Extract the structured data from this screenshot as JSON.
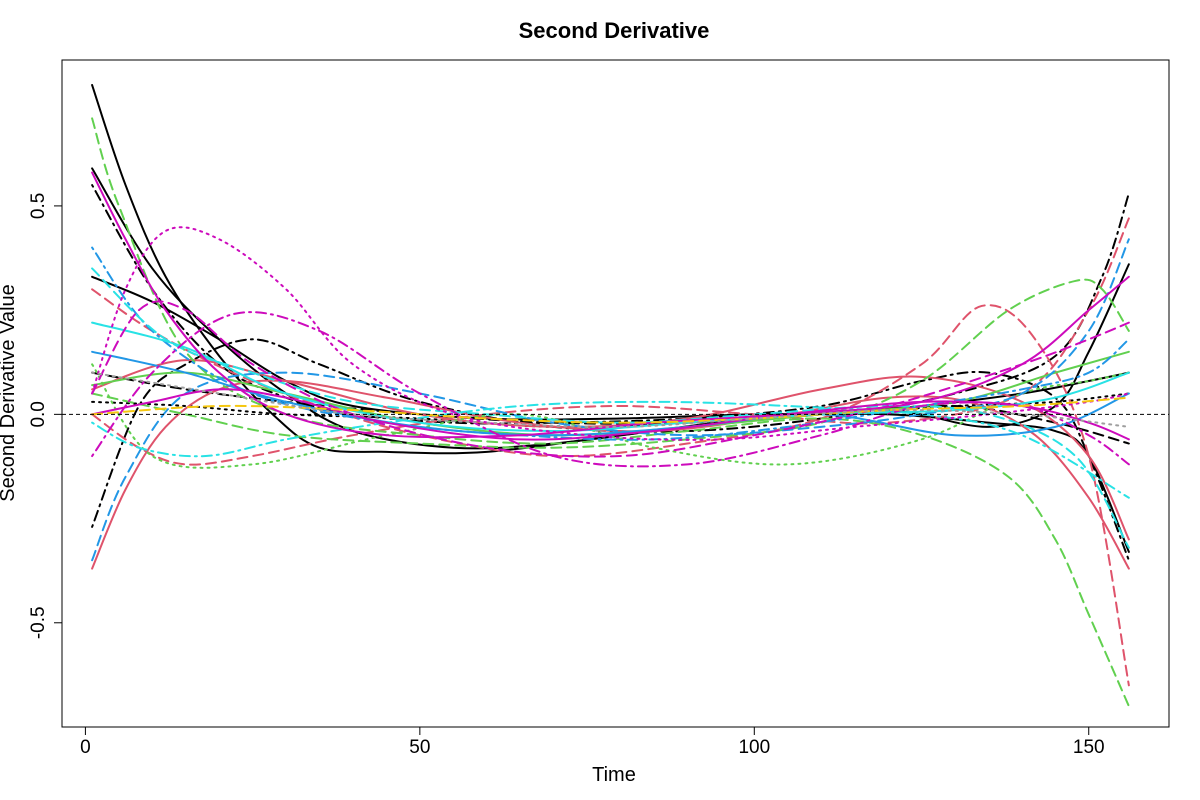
{
  "chart_data": {
    "type": "line",
    "title": "Second Derivative",
    "xlabel": "Time",
    "ylabel": "Second Derivative Value",
    "xlim": [
      -3.5,
      162
    ],
    "ylim": [
      -0.75,
      0.85
    ],
    "x_ticks": [
      0,
      50,
      100,
      150
    ],
    "y_ticks": [
      -0.5,
      0.0,
      0.5
    ],
    "x_tick_labels": [
      "0",
      "50",
      "100",
      "150"
    ],
    "y_tick_labels": [
      "-0.5",
      "0.0",
      "0.5"
    ],
    "reference_line": {
      "y": 0,
      "style": "dashed",
      "color": "#000000"
    },
    "grid": false,
    "legend": "none",
    "palette": [
      "#000000",
      "#DF536B",
      "#61D04F",
      "#2297E6",
      "#28E2E5",
      "#CD0BBC",
      "#F5C710",
      "#9E9E9E"
    ],
    "series": [
      {
        "color": "#000000",
        "dash": "solid",
        "x": [
          1,
          6,
          12,
          20,
          28,
          35,
          45,
          60,
          80,
          100,
          120,
          135,
          145,
          150,
          156
        ],
        "y": [
          0.79,
          0.55,
          0.33,
          0.14,
          0.0,
          -0.08,
          -0.09,
          -0.09,
          -0.05,
          -0.01,
          0.01,
          -0.03,
          0.02,
          0.15,
          0.36
        ]
      },
      {
        "color": "#000000",
        "dash": "solid",
        "x": [
          1,
          10,
          20,
          30,
          40,
          60,
          80,
          100,
          120,
          135,
          145,
          150,
          156
        ],
        "y": [
          0.33,
          0.27,
          0.18,
          0.08,
          0.02,
          -0.01,
          -0.01,
          0.0,
          0.0,
          -0.02,
          -0.04,
          -0.1,
          -0.33
        ]
      },
      {
        "color": "#000000",
        "dash": "solid",
        "x": [
          1,
          10,
          20,
          30,
          40,
          55,
          70,
          90,
          110,
          125,
          140,
          150,
          156
        ],
        "y": [
          0.59,
          0.35,
          0.18,
          0.05,
          -0.04,
          -0.08,
          -0.07,
          -0.03,
          0.0,
          0.02,
          0.05,
          0.08,
          0.1
        ]
      },
      {
        "color": "#000000",
        "dash": "dotdash",
        "x": [
          1,
          8,
          15,
          25,
          35,
          50,
          70,
          90,
          110,
          130,
          145,
          152,
          156
        ],
        "y": [
          -0.27,
          0.02,
          0.12,
          0.18,
          0.12,
          0.03,
          -0.03,
          -0.04,
          -0.01,
          0.05,
          0.14,
          0.33,
          0.53
        ]
      },
      {
        "color": "#000000",
        "dash": "dotdash",
        "x": [
          1,
          10,
          20,
          30,
          40,
          55,
          70,
          90,
          110,
          125,
          135,
          145,
          150,
          156
        ],
        "y": [
          0.55,
          0.3,
          0.12,
          0.04,
          0.0,
          -0.02,
          -0.02,
          -0.01,
          0.02,
          0.08,
          0.1,
          0.04,
          -0.1,
          -0.35
        ]
      },
      {
        "color": "#000000",
        "dash": "dashed",
        "x": [
          1,
          15,
          30,
          50,
          70,
          90,
          110,
          130,
          145,
          156
        ],
        "y": [
          0.1,
          0.06,
          0.03,
          0.0,
          -0.02,
          -0.02,
          0.0,
          0.02,
          -0.02,
          -0.07
        ]
      },
      {
        "color": "#000000",
        "dash": "dotted",
        "x": [
          1,
          15,
          30,
          50,
          70,
          90,
          110,
          130,
          145,
          156
        ],
        "y": [
          0.03,
          0.02,
          0.0,
          -0.01,
          -0.03,
          -0.02,
          0.0,
          0.02,
          0.03,
          0.05
        ]
      },
      {
        "color": "#DF536B",
        "dash": "solid",
        "x": [
          1,
          6,
          12,
          20,
          30,
          45,
          65,
          85,
          105,
          120,
          132,
          142,
          150,
          156
        ],
        "y": [
          -0.37,
          -0.18,
          -0.03,
          0.06,
          0.08,
          0.04,
          -0.02,
          -0.04,
          0.0,
          0.04,
          0.03,
          -0.05,
          -0.2,
          -0.37
        ]
      },
      {
        "color": "#DF536B",
        "dash": "dashed",
        "x": [
          1,
          10,
          22,
          35,
          50,
          70,
          90,
          110,
          125,
          134,
          142,
          150,
          156
        ],
        "y": [
          0.3,
          0.2,
          0.1,
          0.02,
          -0.05,
          -0.1,
          -0.07,
          -0.01,
          0.12,
          0.26,
          0.18,
          -0.1,
          -0.65
        ]
      },
      {
        "color": "#DF536B",
        "dash": "dashed",
        "x": [
          1,
          8,
          15,
          25,
          40,
          60,
          80,
          100,
          120,
          140,
          150,
          156
        ],
        "y": [
          0.0,
          -0.08,
          -0.12,
          -0.1,
          -0.05,
          0.0,
          0.02,
          0.0,
          -0.02,
          0.05,
          0.25,
          0.47
        ]
      },
      {
        "color": "#DF536B",
        "dash": "solid",
        "x": [
          1,
          15,
          30,
          50,
          70,
          90,
          110,
          125,
          140,
          150,
          156
        ],
        "y": [
          0.06,
          0.13,
          0.08,
          0.0,
          -0.03,
          -0.01,
          0.06,
          0.09,
          0.03,
          -0.1,
          -0.3
        ]
      },
      {
        "color": "#61D04F",
        "dash": "dashed",
        "x": [
          1,
          5,
          15,
          30,
          50,
          70,
          90,
          110,
          125,
          138,
          145,
          150,
          156
        ],
        "y": [
          0.71,
          0.5,
          0.15,
          0.0,
          -0.05,
          -0.07,
          -0.04,
          -0.01,
          -0.05,
          -0.15,
          -0.3,
          -0.48,
          -0.7
        ]
      },
      {
        "color": "#61D04F",
        "dash": "dashed",
        "x": [
          1,
          15,
          30,
          50,
          70,
          90,
          110,
          125,
          138,
          148,
          152,
          156
        ],
        "y": [
          0.05,
          0.0,
          -0.05,
          -0.07,
          -0.08,
          -0.06,
          -0.02,
          0.08,
          0.25,
          0.32,
          0.3,
          0.2
        ]
      },
      {
        "color": "#61D04F",
        "dash": "dotted",
        "x": [
          1,
          10,
          25,
          45,
          65,
          85,
          105,
          125,
          140,
          150,
          156
        ],
        "y": [
          0.12,
          -0.1,
          -0.12,
          -0.05,
          0.0,
          -0.08,
          -0.12,
          -0.06,
          0.05,
          0.08,
          0.1
        ]
      },
      {
        "color": "#61D04F",
        "dash": "solid",
        "x": [
          1,
          15,
          30,
          50,
          70,
          90,
          110,
          130,
          145,
          156
        ],
        "y": [
          0.07,
          0.1,
          0.05,
          -0.02,
          -0.05,
          -0.03,
          0.0,
          0.03,
          0.1,
          0.15
        ]
      },
      {
        "color": "#2297E6",
        "dash": "dashed",
        "x": [
          1,
          6,
          15,
          30,
          50,
          70,
          90,
          110,
          125,
          140,
          150,
          156
        ],
        "y": [
          -0.35,
          -0.15,
          0.05,
          0.1,
          0.05,
          -0.02,
          -0.05,
          -0.03,
          0.0,
          0.05,
          0.2,
          0.42
        ]
      },
      {
        "color": "#2297E6",
        "dash": "solid",
        "x": [
          1,
          15,
          30,
          50,
          70,
          90,
          110,
          130,
          145,
          156
        ],
        "y": [
          0.15,
          0.1,
          0.03,
          -0.03,
          -0.05,
          -0.03,
          0.0,
          -0.05,
          -0.03,
          0.05
        ]
      },
      {
        "color": "#2297E6",
        "dash": "dotdash",
        "x": [
          1,
          10,
          25,
          45,
          65,
          85,
          105,
          125,
          140,
          150,
          156
        ],
        "y": [
          0.4,
          0.2,
          0.05,
          -0.02,
          -0.05,
          -0.06,
          -0.03,
          0.02,
          0.06,
          0.1,
          0.18
        ]
      },
      {
        "color": "#28E2E5",
        "dash": "dashed",
        "x": [
          1,
          12,
          25,
          40,
          60,
          80,
          100,
          120,
          135,
          148,
          156
        ],
        "y": [
          0.35,
          0.18,
          0.1,
          0.03,
          0.0,
          -0.02,
          0.0,
          0.02,
          0.0,
          -0.1,
          -0.32
        ]
      },
      {
        "color": "#28E2E5",
        "dash": "dotdash",
        "x": [
          1,
          8,
          18,
          30,
          45,
          65,
          85,
          105,
          125,
          140,
          156
        ],
        "y": [
          -0.02,
          -0.08,
          -0.1,
          -0.06,
          -0.02,
          0.02,
          0.03,
          0.02,
          0.0,
          -0.05,
          -0.2
        ]
      },
      {
        "color": "#28E2E5",
        "dash": "solid",
        "x": [
          1,
          15,
          30,
          50,
          70,
          90,
          110,
          130,
          145,
          156
        ],
        "y": [
          0.22,
          0.16,
          0.05,
          -0.02,
          -0.04,
          -0.02,
          0.0,
          0.01,
          0.04,
          0.1
        ]
      },
      {
        "color": "#CD0BBC",
        "dash": "solid",
        "x": [
          1,
          6,
          12,
          20,
          30,
          45,
          65,
          85,
          105,
          125,
          140,
          150,
          156
        ],
        "y": [
          0.58,
          0.42,
          0.25,
          0.1,
          0.0,
          -0.05,
          -0.05,
          -0.02,
          0.0,
          0.03,
          0.12,
          0.25,
          0.33
        ]
      },
      {
        "color": "#CD0BBC",
        "dash": "dotted",
        "x": [
          1,
          6,
          12,
          20,
          30,
          40,
          55,
          75,
          95,
          115,
          135,
          150,
          156
        ],
        "y": [
          0.05,
          0.3,
          0.44,
          0.42,
          0.3,
          0.12,
          0.0,
          -0.05,
          -0.06,
          -0.03,
          0.0,
          0.03,
          0.05
        ]
      },
      {
        "color": "#CD0BBC",
        "dash": "dashed",
        "x": [
          1,
          8,
          15,
          25,
          40,
          60,
          80,
          100,
          120,
          140,
          150,
          156
        ],
        "y": [
          0.05,
          0.25,
          0.25,
          0.12,
          0.0,
          -0.08,
          -0.1,
          -0.05,
          0.02,
          0.12,
          0.18,
          0.22
        ]
      },
      {
        "color": "#CD0BBC",
        "dash": "dotdash",
        "x": [
          1,
          10,
          22,
          35,
          50,
          70,
          90,
          110,
          125,
          140,
          150,
          156
        ],
        "y": [
          -0.1,
          0.1,
          0.24,
          0.2,
          0.05,
          -0.1,
          -0.12,
          -0.05,
          0.02,
          0.02,
          -0.05,
          -0.12
        ]
      },
      {
        "color": "#CD0BBC",
        "dash": "solid",
        "x": [
          1,
          10,
          20,
          30,
          45,
          65,
          85,
          105,
          125,
          140,
          150,
          156
        ],
        "y": [
          0.0,
          0.03,
          0.06,
          0.04,
          -0.02,
          -0.06,
          -0.04,
          0.0,
          0.03,
          0.02,
          -0.02,
          -0.06
        ]
      },
      {
        "color": "#F5C710",
        "dash": "dashed",
        "x": [
          1,
          20,
          40,
          60,
          80,
          100,
          120,
          140,
          156
        ],
        "y": [
          0.0,
          0.02,
          0.01,
          -0.01,
          -0.02,
          -0.01,
          0.01,
          0.02,
          0.04
        ]
      },
      {
        "color": "#9E9E9E",
        "dash": "dotted",
        "x": [
          1,
          20,
          40,
          60,
          80,
          100,
          120,
          140,
          156
        ],
        "y": [
          0.1,
          0.05,
          0.0,
          -0.02,
          -0.03,
          -0.01,
          0.01,
          0.0,
          -0.03
        ]
      }
    ]
  }
}
